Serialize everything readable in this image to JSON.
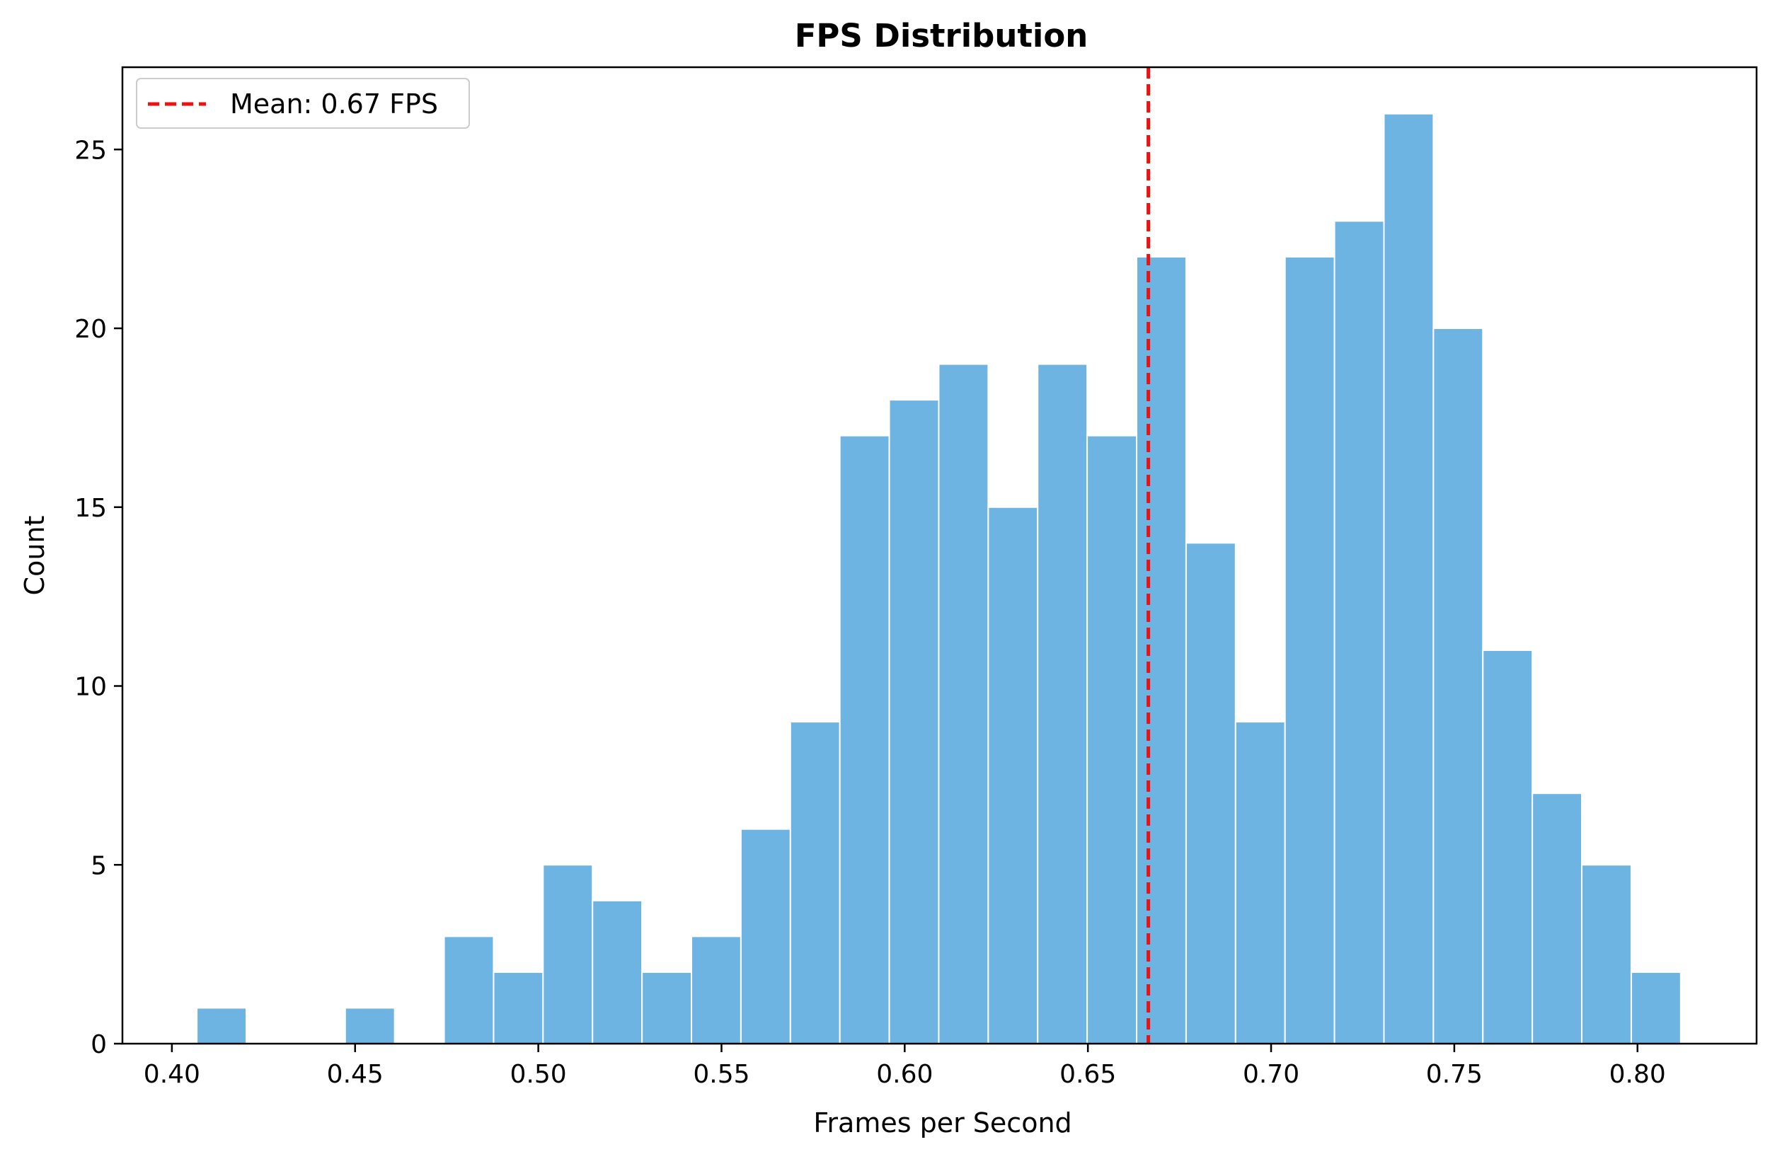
{
  "chart_data": {
    "type": "bar",
    "title": "FPS Distribution",
    "xlabel": "Frames per Second",
    "ylabel": "Count",
    "xlim": [
      0.3865,
      0.8325
    ],
    "ylim": [
      0,
      27.3
    ],
    "grid": false,
    "bar_color": "#6EB4E2",
    "bar_edge_color": "#ffffff",
    "x_ticks": [
      {
        "value": 0.4,
        "label": "0.40"
      },
      {
        "value": 0.45,
        "label": "0.45"
      },
      {
        "value": 0.5,
        "label": "0.50"
      },
      {
        "value": 0.55,
        "label": "0.55"
      },
      {
        "value": 0.6,
        "label": "0.60"
      },
      {
        "value": 0.65,
        "label": "0.65"
      },
      {
        "value": 0.7,
        "label": "0.70"
      },
      {
        "value": 0.75,
        "label": "0.75"
      },
      {
        "value": 0.8,
        "label": "0.80"
      }
    ],
    "y_ticks": [
      {
        "value": 0,
        "label": "0"
      },
      {
        "value": 5,
        "label": "5"
      },
      {
        "value": 10,
        "label": "10"
      },
      {
        "value": 15,
        "label": "15"
      },
      {
        "value": 20,
        "label": "20"
      },
      {
        "value": 25,
        "label": "25"
      }
    ],
    "bins": [
      {
        "start": 0.4068,
        "end": 0.4203,
        "count": 1
      },
      {
        "start": 0.4203,
        "end": 0.4338,
        "count": 0
      },
      {
        "start": 0.4338,
        "end": 0.4473,
        "count": 0
      },
      {
        "start": 0.4473,
        "end": 0.4608,
        "count": 1
      },
      {
        "start": 0.4608,
        "end": 0.4743,
        "count": 0
      },
      {
        "start": 0.4743,
        "end": 0.4878,
        "count": 3
      },
      {
        "start": 0.4878,
        "end": 0.5013,
        "count": 2
      },
      {
        "start": 0.5013,
        "end": 0.5148,
        "count": 5
      },
      {
        "start": 0.5148,
        "end": 0.5283,
        "count": 4
      },
      {
        "start": 0.5283,
        "end": 0.5418,
        "count": 2
      },
      {
        "start": 0.5418,
        "end": 0.5553,
        "count": 3
      },
      {
        "start": 0.5553,
        "end": 0.5688,
        "count": 6
      },
      {
        "start": 0.5688,
        "end": 0.5823,
        "count": 9
      },
      {
        "start": 0.5823,
        "end": 0.5958,
        "count": 17
      },
      {
        "start": 0.5958,
        "end": 0.6093,
        "count": 18
      },
      {
        "start": 0.6093,
        "end": 0.6228,
        "count": 19
      },
      {
        "start": 0.6228,
        "end": 0.6363,
        "count": 15
      },
      {
        "start": 0.6363,
        "end": 0.6498,
        "count": 19
      },
      {
        "start": 0.6498,
        "end": 0.6633,
        "count": 17
      },
      {
        "start": 0.6633,
        "end": 0.6768,
        "count": 22
      },
      {
        "start": 0.6768,
        "end": 0.6903,
        "count": 14
      },
      {
        "start": 0.6903,
        "end": 0.7038,
        "count": 9
      },
      {
        "start": 0.7038,
        "end": 0.7173,
        "count": 22
      },
      {
        "start": 0.7173,
        "end": 0.7308,
        "count": 23
      },
      {
        "start": 0.7308,
        "end": 0.7443,
        "count": 26
      },
      {
        "start": 0.7443,
        "end": 0.7578,
        "count": 20
      },
      {
        "start": 0.7578,
        "end": 0.7713,
        "count": 11
      },
      {
        "start": 0.7713,
        "end": 0.7848,
        "count": 7
      },
      {
        "start": 0.7848,
        "end": 0.7983,
        "count": 5
      },
      {
        "start": 0.7983,
        "end": 0.8118,
        "count": 2
      }
    ],
    "mean_line": {
      "value": 0.6665,
      "color": "#EE1111",
      "style": "dashed",
      "label": "Mean: 0.67 FPS"
    },
    "legend": {
      "placement": "top-left",
      "entries": [
        "Mean: 0.67 FPS"
      ]
    }
  }
}
